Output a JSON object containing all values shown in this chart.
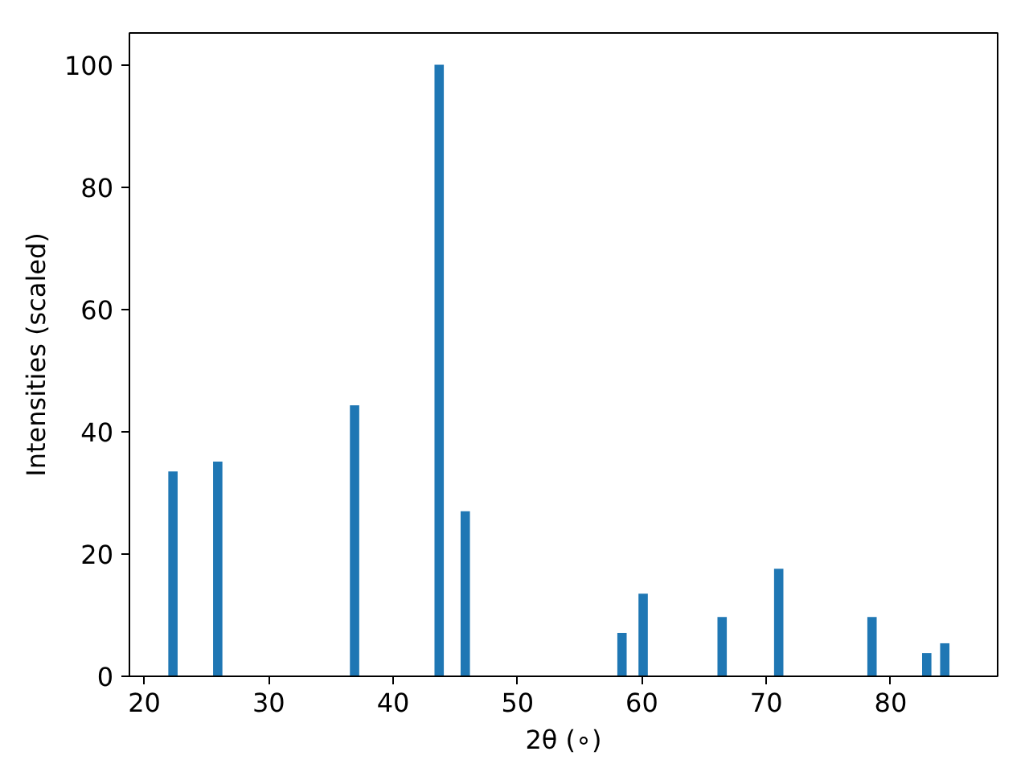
{
  "chart_data": {
    "type": "bar",
    "xlabel": "2θ (∘)",
    "ylabel": "Intensities (scaled)",
    "x": [
      22.3,
      25.9,
      36.9,
      43.7,
      45.8,
      58.4,
      60.1,
      66.45,
      71.0,
      78.5,
      82.9,
      84.35
    ],
    "values": [
      33.5,
      35.1,
      44.3,
      100,
      27.0,
      7.1,
      13.5,
      9.7,
      17.6,
      9.7,
      3.8,
      5.4
    ],
    "color": "#1f77b4",
    "xlim": [
      18.8,
      88.6
    ],
    "ylim": [
      0,
      105.2
    ],
    "xticks": [
      20,
      30,
      40,
      50,
      60,
      70,
      80
    ],
    "yticks": [
      0,
      20,
      40,
      60,
      80,
      100
    ],
    "grid": false
  }
}
